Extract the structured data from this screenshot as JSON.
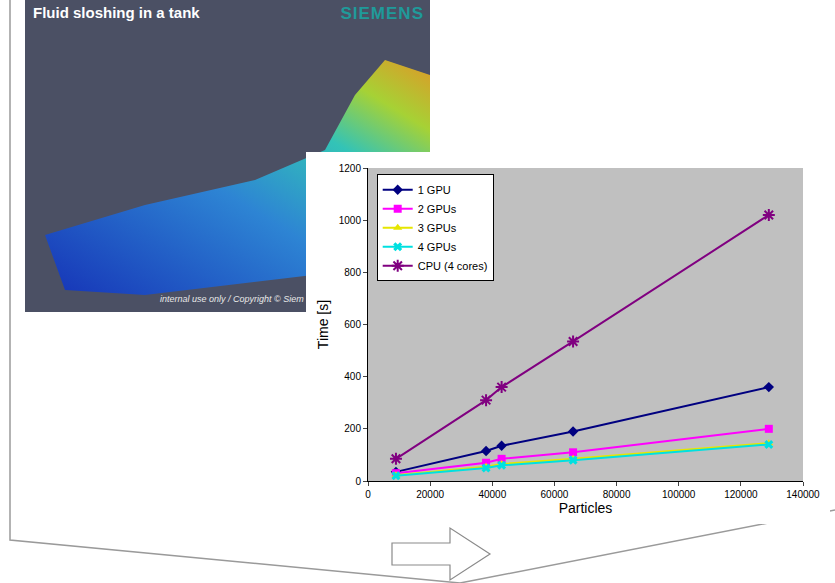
{
  "chart_data": {
    "type": "line",
    "xlabel": "Particles",
    "ylabel": "Time [s]",
    "x": [
      9000,
      38000,
      43000,
      66000,
      129000
    ],
    "series": [
      {
        "name": "1 GPU",
        "color": "#000080",
        "marker": "diamond",
        "line_style": "solid",
        "values": [
          35,
          115,
          135,
          190,
          360
        ]
      },
      {
        "name": "2 GPUs",
        "color": "#ff00ff",
        "marker": "square",
        "line_style": "solid",
        "values": [
          30,
          70,
          85,
          110,
          200
        ]
      },
      {
        "name": "3 GPUs",
        "color": "#e6e600",
        "marker": "triangle-up",
        "line_style": "solid",
        "values": [
          22,
          55,
          65,
          85,
          145
        ]
      },
      {
        "name": "4 GPUs",
        "color": "#00e0e0",
        "marker": "x",
        "line_style": "solid",
        "values": [
          20,
          50,
          60,
          80,
          140
        ]
      },
      {
        "name": "CPU (4 cores)",
        "color": "#800080",
        "marker": "asterisk",
        "line_style": "solid",
        "values": [
          85,
          310,
          360,
          535,
          1020
        ]
      }
    ],
    "xlim": [
      0,
      140000
    ],
    "xticks": [
      0,
      20000,
      40000,
      60000,
      80000,
      100000,
      120000,
      140000
    ],
    "ylim": [
      0,
      1200
    ],
    "yticks": [
      0,
      200,
      400,
      600,
      800,
      1000,
      1200
    ],
    "grid": false,
    "legend": "top-left"
  },
  "image_panel": {
    "title": "Fluid sloshing in a tank",
    "logo": "SIEMENS",
    "footer": "internal use only / Copyright © Siem"
  }
}
